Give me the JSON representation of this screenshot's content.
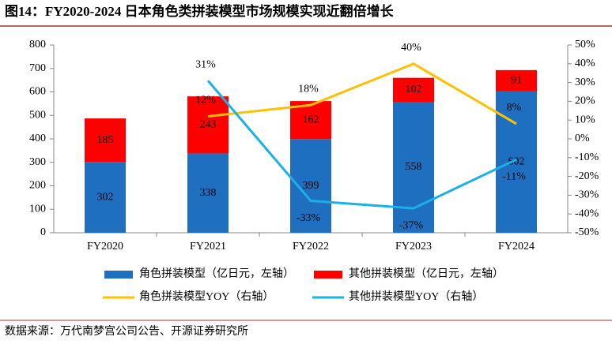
{
  "chart_data": {
    "type": "bar",
    "title": "图14：FY2020-2024 日本角色类拼装模型市场规模实现近翻倍增长",
    "source": "数据来源：万代南梦宫公司公告、开源证券研究所",
    "categories": [
      "FY2020",
      "FY2021",
      "FY2022",
      "FY2023",
      "FY2024"
    ],
    "series": [
      {
        "name": "角色拼装模型（亿日元，左轴）",
        "type": "bar",
        "color": "#1f6fc0",
        "values": [
          302,
          338,
          399,
          558,
          602
        ]
      },
      {
        "name": "其他拼装模型（亿日元，左轴）",
        "type": "bar",
        "color": "#ff0000",
        "values": [
          185,
          243,
          162,
          102,
          91
        ]
      },
      {
        "name": "角色拼装模型YOY（右轴）",
        "type": "line",
        "axis": "y2",
        "color": "#ffc000",
        "values": [
          null,
          12,
          18,
          40,
          8
        ],
        "value_labels": [
          null,
          "12%",
          "18%",
          "40%",
          "8%"
        ]
      },
      {
        "name": "其他拼装模型YOY（右轴）",
        "type": "line",
        "axis": "y2",
        "color": "#1ab0e8",
        "values": [
          null,
          31,
          -33,
          -37,
          -11
        ],
        "value_labels": [
          null,
          "31%",
          "-33%",
          "-37%",
          "-11%"
        ]
      }
    ],
    "ylim": [
      0,
      800
    ],
    "yticks": [
      0,
      100,
      200,
      300,
      400,
      500,
      600,
      700,
      800
    ],
    "y2lim": [
      -50,
      50
    ],
    "y2ticks": [
      {
        "value": -50,
        "label": "-50%"
      },
      {
        "value": -40,
        "label": "-40%"
      },
      {
        "value": -30,
        "label": "-30%"
      },
      {
        "value": -20,
        "label": "-20%"
      },
      {
        "value": -10,
        "label": "-10%"
      },
      {
        "value": 0,
        "label": "0%"
      },
      {
        "value": 10,
        "label": "10%"
      },
      {
        "value": 20,
        "label": "20%"
      },
      {
        "value": 30,
        "label": "30%"
      },
      {
        "value": 40,
        "label": "40%"
      },
      {
        "value": 50,
        "label": "50%"
      }
    ]
  }
}
